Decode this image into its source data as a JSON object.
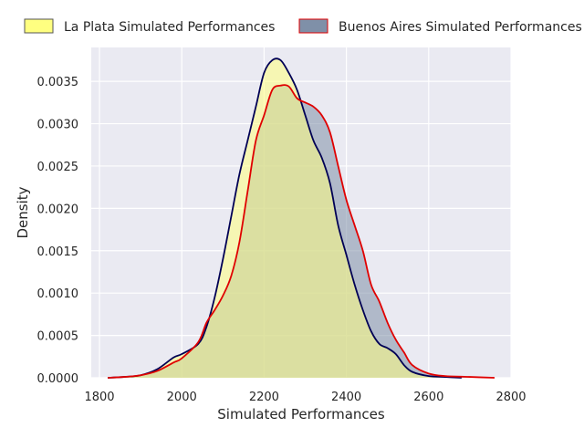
{
  "chart_data": {
    "type": "area",
    "title": "",
    "xlabel": "Simulated Performances",
    "ylabel": "Density",
    "xlim": [
      1780,
      2800
    ],
    "ylim": [
      0,
      0.0039
    ],
    "x_ticks": [
      1800,
      2000,
      2200,
      2400,
      2600,
      2800
    ],
    "x_tick_labels": [
      "1800",
      "2000",
      "2200",
      "2400",
      "2600",
      "2800"
    ],
    "y_ticks": [
      0,
      0.0005,
      0.001,
      0.0015,
      0.002,
      0.0025,
      0.003,
      0.0035
    ],
    "y_tick_labels": [
      "0.0000",
      "0.0005",
      "0.0010",
      "0.0015",
      "0.0020",
      "0.0025",
      "0.0030",
      "0.0035"
    ],
    "grid": true,
    "legend_position": "top",
    "series": [
      {
        "name": "La Plata Simulated Performances",
        "fill_color": "#ffff80",
        "line_color": "#000055",
        "x": [
          1820,
          1860,
          1900,
          1940,
          1980,
          2000,
          2040,
          2060,
          2080,
          2100,
          2120,
          2140,
          2160,
          2180,
          2200,
          2220,
          2240,
          2260,
          2280,
          2300,
          2320,
          2340,
          2360,
          2380,
          2400,
          2420,
          2440,
          2460,
          2480,
          2500,
          2520,
          2540,
          2560,
          2600,
          2640,
          2680
        ],
        "y": [
          0.0,
          1e-05,
          3e-05,
          0.0001,
          0.00024,
          0.00028,
          0.0004,
          0.0006,
          0.00095,
          0.0014,
          0.0019,
          0.0024,
          0.0028,
          0.0032,
          0.0036,
          0.00375,
          0.00375,
          0.0036,
          0.0034,
          0.0031,
          0.0028,
          0.0026,
          0.0023,
          0.0018,
          0.00145,
          0.0011,
          0.0008,
          0.00055,
          0.0004,
          0.00035,
          0.00028,
          0.00015,
          7e-05,
          2e-05,
          1e-05,
          0.0
        ]
      },
      {
        "name": "Buenos Aires Simulated Performances",
        "fill_color": "#7f90a8",
        "line_color": "#e00000",
        "x": [
          1820,
          1860,
          1900,
          1940,
          1980,
          2000,
          2040,
          2060,
          2080,
          2100,
          2120,
          2140,
          2160,
          2180,
          2200,
          2220,
          2240,
          2260,
          2280,
          2300,
          2320,
          2340,
          2360,
          2380,
          2400,
          2420,
          2440,
          2460,
          2480,
          2500,
          2520,
          2540,
          2560,
          2600,
          2640,
          2700,
          2760
        ],
        "y": [
          0.0,
          1e-05,
          3e-05,
          8e-05,
          0.00018,
          0.00023,
          0.00042,
          0.00065,
          0.0008,
          0.00097,
          0.0012,
          0.0016,
          0.0022,
          0.0028,
          0.0031,
          0.0034,
          0.00345,
          0.00344,
          0.0033,
          0.00325,
          0.0032,
          0.0031,
          0.0029,
          0.0025,
          0.0021,
          0.0018,
          0.0015,
          0.0011,
          0.0009,
          0.00065,
          0.00045,
          0.0003,
          0.00015,
          5e-05,
          2e-05,
          1e-05,
          0.0
        ]
      }
    ]
  }
}
